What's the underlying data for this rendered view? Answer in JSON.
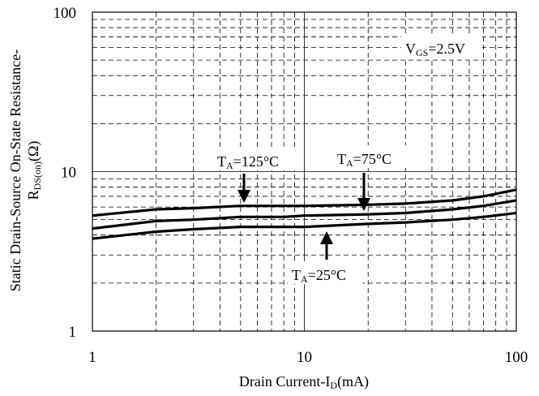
{
  "chart_data": {
    "type": "line",
    "x_scale": "log",
    "y_scale": "log",
    "xlim": [
      1,
      100
    ],
    "ylim": [
      1,
      100
    ],
    "x_ticks": [
      "1",
      "10",
      "100"
    ],
    "y_ticks": [
      "1",
      "10",
      "100"
    ],
    "grid": true,
    "xlabel": {
      "main": "Drain Current-I",
      "sub": "D",
      "tail": "(mA)"
    },
    "ylabel": {
      "line1": "Static Drain-Source On-State Resistance-",
      "line2_main": "R",
      "line2_sub": "DS(on)",
      "line2_tail": "(Ω)"
    },
    "annotations": {
      "condition": {
        "main": "V",
        "sub": "GS",
        "tail": "=2.5V"
      },
      "t125": {
        "main": "T",
        "sub": "A",
        "tail": "=125°C"
      },
      "t75": {
        "main": "T",
        "sub": "A",
        "tail": "=75°C"
      },
      "t25": {
        "main": "T",
        "sub": "A",
        "tail": "=25°C"
      }
    },
    "series": [
      {
        "label_key": "t125",
        "x": [
          1,
          2,
          3,
          5,
          8,
          10,
          20,
          30,
          50,
          70,
          100
        ],
        "y": [
          5.3,
          5.8,
          5.9,
          6.1,
          6.1,
          6.1,
          6.2,
          6.3,
          6.6,
          7.0,
          7.7
        ]
      },
      {
        "label_key": "t75",
        "x": [
          1,
          2,
          3,
          5,
          8,
          10,
          20,
          30,
          50,
          70,
          100
        ],
        "y": [
          4.4,
          4.9,
          5.0,
          5.2,
          5.2,
          5.3,
          5.4,
          5.5,
          5.8,
          6.1,
          6.6
        ]
      },
      {
        "label_key": "t25",
        "x": [
          1,
          2,
          3,
          5,
          8,
          10,
          20,
          30,
          50,
          70,
          100
        ],
        "y": [
          3.8,
          4.2,
          4.35,
          4.5,
          4.5,
          4.5,
          4.7,
          4.8,
          5.0,
          5.2,
          5.5
        ]
      }
    ]
  }
}
